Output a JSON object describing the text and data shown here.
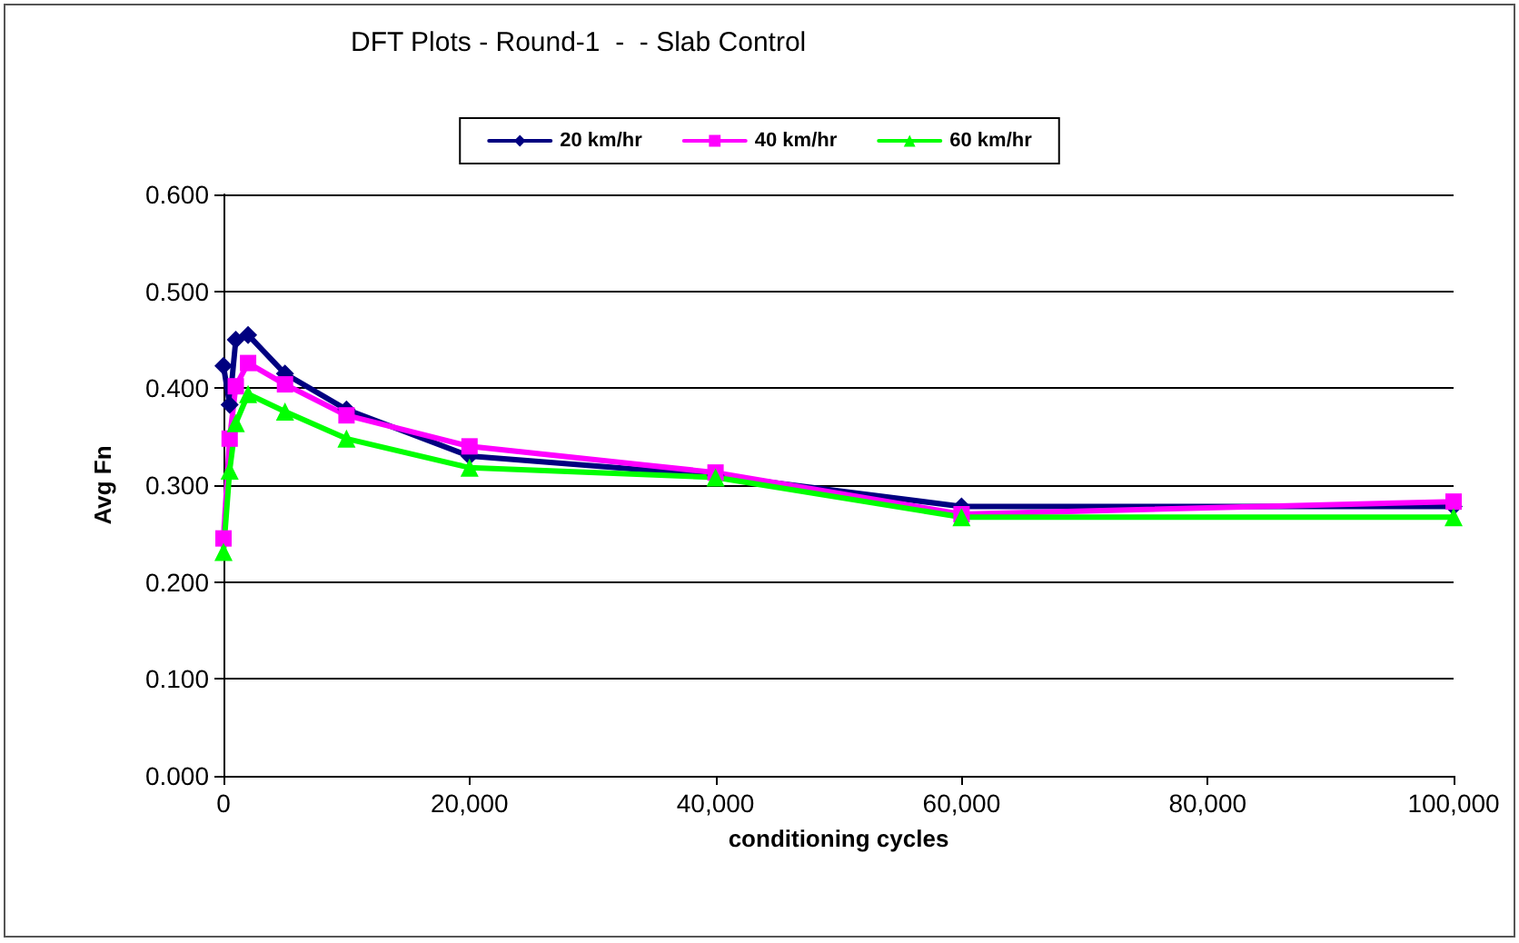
{
  "chart_data": {
    "type": "line",
    "title": "DFT Plots - Round-1  -  - Slab Control",
    "xlabel": "conditioning cycles",
    "ylabel": "Avg Fn",
    "series": [
      {
        "name": "20 km/hr",
        "color": "#000080",
        "marker": "diamond",
        "x": [
          0,
          500,
          1000,
          2000,
          5000,
          10000,
          20000,
          40000,
          60000,
          100000
        ],
        "values": [
          0.423,
          0.383,
          0.45,
          0.455,
          0.415,
          0.378,
          0.33,
          0.31,
          0.278,
          0.278
        ]
      },
      {
        "name": "40 km/hr",
        "color": "#ff00ff",
        "marker": "square",
        "x": [
          0,
          500,
          1000,
          2000,
          5000,
          10000,
          20000,
          40000,
          60000,
          100000
        ],
        "values": [
          0.245,
          0.348,
          0.402,
          0.426,
          0.404,
          0.372,
          0.34,
          0.313,
          0.27,
          0.283
        ]
      },
      {
        "name": "60 km/hr",
        "color": "#00ff00",
        "marker": "triangle",
        "x": [
          0,
          500,
          1000,
          2000,
          5000,
          10000,
          20000,
          40000,
          60000,
          100000
        ],
        "values": [
          0.231,
          0.315,
          0.364,
          0.394,
          0.376,
          0.348,
          0.318,
          0.308,
          0.267,
          0.267
        ]
      }
    ],
    "xlim": [
      0,
      100000
    ],
    "xticks": [
      {
        "value": 0,
        "label": "0"
      },
      {
        "value": 20000,
        "label": "20,000"
      },
      {
        "value": 40000,
        "label": "40,000"
      },
      {
        "value": 60000,
        "label": "60,000"
      },
      {
        "value": 80000,
        "label": "80,000"
      },
      {
        "value": 100000,
        "label": "100,000"
      }
    ],
    "ylim": [
      0,
      0.6
    ],
    "yticks": [
      {
        "value": 0,
        "label": "0.000"
      },
      {
        "value": 0.1,
        "label": "0.100"
      },
      {
        "value": 0.2,
        "label": "0.200"
      },
      {
        "value": 0.3,
        "label": "0.300"
      },
      {
        "value": 0.4,
        "label": "0.400"
      },
      {
        "value": 0.5,
        "label": "0.500"
      },
      {
        "value": 0.6,
        "label": "0.600"
      }
    ],
    "grid": "y",
    "legend": "top",
    "line_style": "solid"
  }
}
